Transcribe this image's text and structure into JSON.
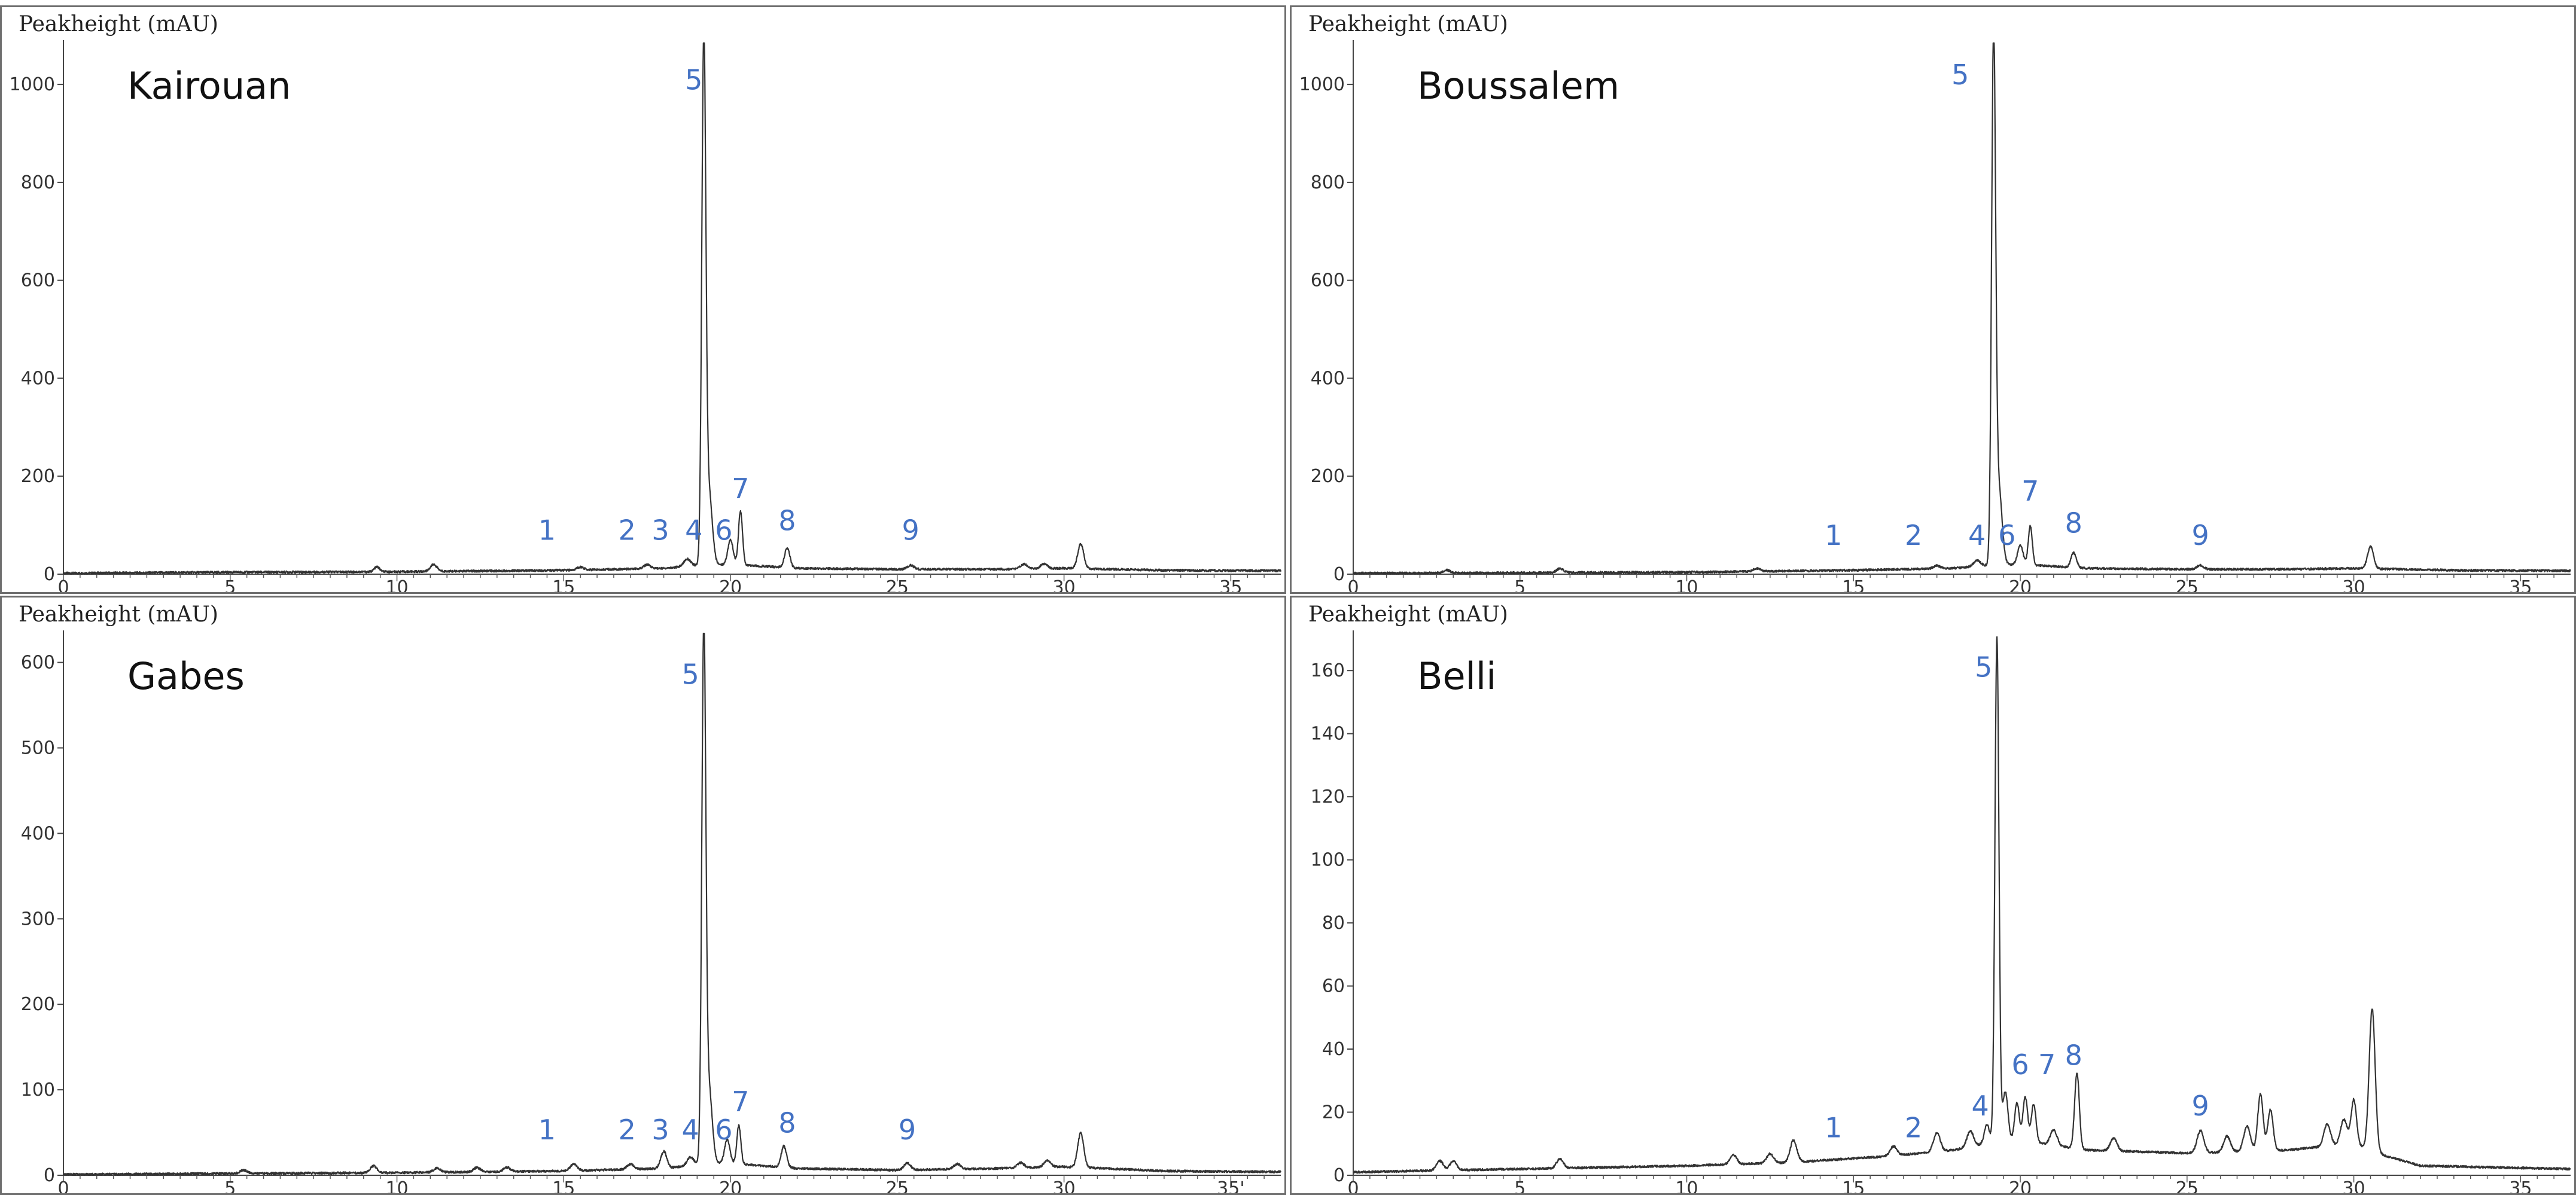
{
  "chart_data": [
    {
      "type": "line",
      "title": "Kairouan",
      "ylabel": "Peakheight (mAU)",
      "xlim": [
        0,
        36.5
      ],
      "ylim": [
        0,
        1060
      ],
      "xticks": [
        0,
        5,
        10,
        15,
        20,
        25,
        30
      ],
      "xtick_labels": [
        "0",
        "5",
        "10",
        "15",
        "20",
        "25",
        "30"
      ],
      "xaxis_end_label": "35",
      "yticks": [
        0,
        200,
        400,
        600,
        800,
        1000
      ],
      "ytick_labels": [
        "0",
        "200",
        "400",
        "600",
        "800",
        "1000"
      ],
      "baseline": [
        [
          0,
          2
        ],
        [
          5,
          4
        ],
        [
          10,
          5
        ],
        [
          15,
          8
        ],
        [
          18,
          12
        ],
        [
          19,
          18
        ],
        [
          20,
          20
        ],
        [
          22,
          12
        ],
        [
          25,
          10
        ],
        [
          28,
          10
        ],
        [
          30,
          12
        ],
        [
          33,
          8
        ],
        [
          36.5,
          7
        ]
      ],
      "peaks": [
        [
          9.4,
          10,
          0.08
        ],
        [
          11.1,
          14,
          0.1
        ],
        [
          15.5,
          6,
          0.1
        ],
        [
          17.5,
          8,
          0.1
        ],
        [
          18.7,
          15,
          0.1
        ],
        [
          19.2,
          1050,
          0.06
        ],
        [
          19.35,
          150,
          0.1
        ],
        [
          20.0,
          50,
          0.08
        ],
        [
          20.3,
          110,
          0.06
        ],
        [
          21.7,
          40,
          0.08
        ],
        [
          25.4,
          8,
          0.1
        ],
        [
          28.8,
          10,
          0.1
        ],
        [
          29.4,
          10,
          0.1
        ],
        [
          30.5,
          50,
          0.09
        ]
      ],
      "peak_labels": [
        {
          "label": "1",
          "x": 14.5,
          "y": 70
        },
        {
          "label": "2",
          "x": 16.9,
          "y": 70
        },
        {
          "label": "3",
          "x": 17.9,
          "y": 70
        },
        {
          "label": "4",
          "x": 18.9,
          "y": 70
        },
        {
          "label": "5",
          "x": 18.9,
          "y": 990
        },
        {
          "label": "6",
          "x": 19.8,
          "y": 70
        },
        {
          "label": "7",
          "x": 20.3,
          "y": 155
        },
        {
          "label": "8",
          "x": 21.7,
          "y": 90
        },
        {
          "label": "9",
          "x": 25.4,
          "y": 70
        }
      ]
    },
    {
      "type": "line",
      "title": "Boussalem",
      "ylabel": "Peakheight (mAU)",
      "xlim": [
        0,
        36.5
      ],
      "ylim": [
        0,
        1060
      ],
      "xticks": [
        0,
        5,
        10,
        15,
        20,
        25,
        30
      ],
      "xtick_labels": [
        "0",
        "5",
        "10",
        "15",
        "20",
        "25",
        "30"
      ],
      "xaxis_end_label": "35",
      "yticks": [
        0,
        200,
        400,
        600,
        800,
        1000
      ],
      "ytick_labels": [
        "0",
        "200",
        "400",
        "600",
        "800",
        "1000"
      ],
      "baseline": [
        [
          0,
          2
        ],
        [
          5,
          3
        ],
        [
          10,
          4
        ],
        [
          15,
          8
        ],
        [
          18,
          12
        ],
        [
          19,
          18
        ],
        [
          20,
          20
        ],
        [
          22,
          12
        ],
        [
          25,
          10
        ],
        [
          28,
          10
        ],
        [
          30,
          12
        ],
        [
          33,
          8
        ],
        [
          36.5,
          7
        ]
      ],
      "peaks": [
        [
          2.8,
          6,
          0.1
        ],
        [
          6.2,
          8,
          0.1
        ],
        [
          12.1,
          6,
          0.1
        ],
        [
          17.5,
          6,
          0.1
        ],
        [
          18.7,
          12,
          0.1
        ],
        [
          19.2,
          1050,
          0.06
        ],
        [
          19.35,
          160,
          0.1
        ],
        [
          20.0,
          40,
          0.08
        ],
        [
          20.3,
          80,
          0.06
        ],
        [
          21.6,
          30,
          0.08
        ],
        [
          25.4,
          8,
          0.1
        ],
        [
          30.5,
          45,
          0.09
        ]
      ],
      "peak_labels": [
        {
          "label": "1",
          "x": 14.4,
          "y": 60
        },
        {
          "label": "2",
          "x": 16.8,
          "y": 60
        },
        {
          "label": "4",
          "x": 18.7,
          "y": 60
        },
        {
          "label": "5",
          "x": 18.2,
          "y": 1000
        },
        {
          "label": "6",
          "x": 19.6,
          "y": 60
        },
        {
          "label": "7",
          "x": 20.3,
          "y": 150
        },
        {
          "label": "8",
          "x": 21.6,
          "y": 85
        },
        {
          "label": "9",
          "x": 25.4,
          "y": 60
        }
      ]
    },
    {
      "type": "line",
      "title": "Gabes",
      "ylabel": "Peakheight (mAU)",
      "xlim": [
        0,
        36.5
      ],
      "ylim": [
        0,
        620
      ],
      "xticks": [
        0,
        5,
        10,
        15,
        20,
        25,
        30
      ],
      "xtick_labels": [
        "0",
        "5",
        "10",
        "15",
        "20",
        "25",
        "30"
      ],
      "xaxis_end_label": "35'",
      "yticks": [
        0,
        100,
        200,
        300,
        400,
        500,
        600
      ],
      "ytick_labels": [
        "0",
        "100",
        "200",
        "300",
        "400",
        "500",
        "600"
      ],
      "baseline": [
        [
          0,
          1
        ],
        [
          5,
          2
        ],
        [
          10,
          3
        ],
        [
          15,
          5
        ],
        [
          18,
          8
        ],
        [
          19,
          12
        ],
        [
          20,
          14
        ],
        [
          22,
          8
        ],
        [
          25,
          6
        ],
        [
          28,
          8
        ],
        [
          30,
          10
        ],
        [
          33,
          5
        ],
        [
          36.5,
          4
        ]
      ],
      "peaks": [
        [
          5.4,
          4,
          0.1
        ],
        [
          9.3,
          8,
          0.1
        ],
        [
          11.2,
          5,
          0.1
        ],
        [
          12.4,
          5,
          0.1
        ],
        [
          13.3,
          5,
          0.1
        ],
        [
          15.3,
          8,
          0.1
        ],
        [
          17.0,
          6,
          0.1
        ],
        [
          18.0,
          20,
          0.09
        ],
        [
          18.8,
          10,
          0.1
        ],
        [
          19.2,
          610,
          0.06
        ],
        [
          19.35,
          90,
          0.1
        ],
        [
          19.9,
          28,
          0.08
        ],
        [
          20.25,
          45,
          0.06
        ],
        [
          21.6,
          25,
          0.08
        ],
        [
          25.3,
          8,
          0.1
        ],
        [
          26.8,
          6,
          0.1
        ],
        [
          28.7,
          6,
          0.1
        ],
        [
          29.5,
          8,
          0.1
        ],
        [
          30.5,
          40,
          0.09
        ]
      ],
      "peak_labels": [
        {
          "label": "1",
          "x": 14.5,
          "y": 42
        },
        {
          "label": "2",
          "x": 16.9,
          "y": 42
        },
        {
          "label": "3",
          "x": 17.9,
          "y": 42
        },
        {
          "label": "4",
          "x": 18.8,
          "y": 42
        },
        {
          "label": "5",
          "x": 18.8,
          "y": 575
        },
        {
          "label": "6",
          "x": 19.8,
          "y": 42
        },
        {
          "label": "7",
          "x": 20.3,
          "y": 75
        },
        {
          "label": "8",
          "x": 21.7,
          "y": 50
        },
        {
          "label": "9",
          "x": 25.3,
          "y": 42
        }
      ]
    },
    {
      "type": "line",
      "title": "Belli",
      "ylabel": "Peakheight (mAU)",
      "xlim": [
        0,
        36.5
      ],
      "ylim": [
        0,
        168
      ],
      "xticks": [
        0,
        5,
        10,
        15,
        20,
        25,
        30
      ],
      "xtick_labels": [
        "0",
        "5",
        "10",
        "15",
        "20",
        "25",
        "30"
      ],
      "xaxis_end_label": "35",
      "yticks": [
        0,
        20,
        40,
        60,
        80,
        100,
        120,
        140,
        160
      ],
      "ytick_labels": [
        "0",
        "20",
        "40",
        "60",
        "80",
        "100",
        "120",
        "140",
        "160"
      ],
      "baseline": [
        [
          0,
          1
        ],
        [
          5,
          2
        ],
        [
          10,
          3
        ],
        [
          13,
          4
        ],
        [
          16,
          6
        ],
        [
          18,
          8
        ],
        [
          19,
          10
        ],
        [
          20,
          11
        ],
        [
          22,
          8
        ],
        [
          25,
          7
        ],
        [
          28,
          8
        ],
        [
          30,
          10
        ],
        [
          31,
          6
        ],
        [
          32,
          3
        ],
        [
          36.5,
          2
        ]
      ],
      "peaks": [
        [
          2.6,
          3,
          0.1
        ],
        [
          3.0,
          3,
          0.1
        ],
        [
          6.2,
          3,
          0.1
        ],
        [
          11.4,
          3,
          0.1
        ],
        [
          12.5,
          3,
          0.1
        ],
        [
          13.2,
          7,
          0.1
        ],
        [
          16.2,
          3,
          0.1
        ],
        [
          17.5,
          6,
          0.1
        ],
        [
          18.5,
          5,
          0.1
        ],
        [
          19.0,
          6,
          0.08
        ],
        [
          19.3,
          160,
          0.06
        ],
        [
          19.55,
          16,
          0.08
        ],
        [
          19.9,
          12,
          0.07
        ],
        [
          20.15,
          14,
          0.07
        ],
        [
          20.4,
          12,
          0.07
        ],
        [
          21.0,
          5,
          0.1
        ],
        [
          21.7,
          24,
          0.07
        ],
        [
          22.8,
          4,
          0.1
        ],
        [
          25.4,
          7,
          0.1
        ],
        [
          26.2,
          5,
          0.1
        ],
        [
          26.8,
          8,
          0.1
        ],
        [
          27.2,
          18,
          0.08
        ],
        [
          27.5,
          13,
          0.08
        ],
        [
          29.2,
          7,
          0.1
        ],
        [
          29.7,
          8,
          0.1
        ],
        [
          30.0,
          14,
          0.08
        ],
        [
          30.55,
          45,
          0.09
        ]
      ],
      "peak_labels": [
        {
          "label": "1",
          "x": 14.4,
          "y": 12
        },
        {
          "label": "2",
          "x": 16.8,
          "y": 12
        },
        {
          "label": "4",
          "x": 18.8,
          "y": 19
        },
        {
          "label": "5",
          "x": 18.9,
          "y": 158
        },
        {
          "label": "6",
          "x": 20.0,
          "y": 32
        },
        {
          "label": "7",
          "x": 20.8,
          "y": 32
        },
        {
          "label": "8",
          "x": 21.6,
          "y": 35
        },
        {
          "label": "9",
          "x": 25.4,
          "y": 19
        }
      ]
    }
  ]
}
